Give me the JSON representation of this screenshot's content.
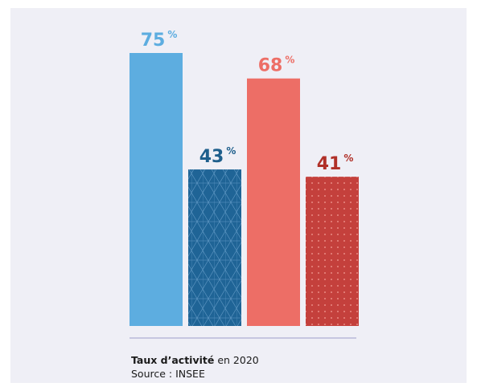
{
  "chart_data": {
    "type": "bar",
    "categories": [
      "",
      "",
      "",
      ""
    ],
    "values": [
      75,
      43,
      68,
      41
    ],
    "unit": "%",
    "ylim": [
      0,
      100
    ],
    "grid": false,
    "legend": "none",
    "colors": [
      "#5dade0",
      "#1f6496",
      "#ed6e66",
      "#c4403c"
    ],
    "label_colors": [
      "#5dade0",
      "#1f5f8c",
      "#ed6e66",
      "#b03028"
    ],
    "patterns": [
      "solid",
      "triangle-grid",
      "solid",
      "dots"
    ]
  },
  "caption": {
    "title_bold": "Taux d’activité",
    "title_rest": " en 2020",
    "source": "Source : INSEE"
  },
  "colors": {
    "background": "#efeff6",
    "baseline": "#c6c6e0"
  }
}
